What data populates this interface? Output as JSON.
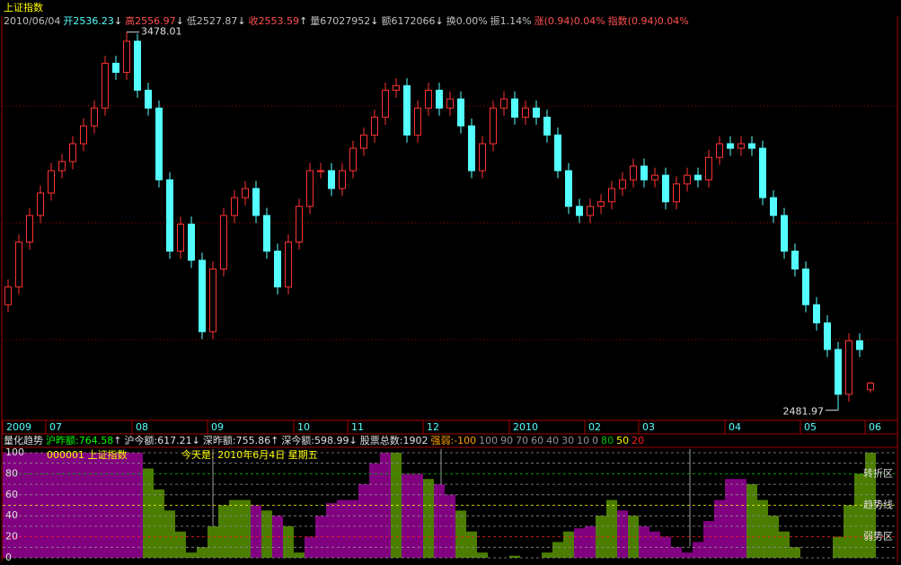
{
  "header": {
    "title": "上证指数",
    "date": "2010/06/04",
    "items": [
      {
        "label": "开",
        "arrow": "↓",
        "color": "#54ffff"
      },
      {
        "label": "高",
        "arrow": "↓",
        "color": "#ff5050"
      },
      {
        "label": "低",
        "arrow": "↓",
        "color": "#c0c0c0"
      },
      {
        "label": "收",
        "arrow": "↑",
        "color": "#ff5050"
      },
      {
        "label": "量",
        "value": "67027952",
        "arrow": "↓",
        "color": "#c0c0c0"
      },
      {
        "label": "额",
        "value": "6172066",
        "arrow": "↓",
        "color": "#c0c0c0"
      },
      {
        "label": "换",
        "value": "0.00%",
        "color": "#c0c0c0"
      },
      {
        "label": "振",
        "value": "1.14%",
        "color": "#c0c0c0"
      },
      {
        "label": "涨",
        "value": "(0.94)0.04%",
        "color": "#ff5050"
      },
      {
        "label": "指数",
        "value": "(0.94)0.04%",
        "color": "#ff5050"
      }
    ]
  },
  "chart_data": [
    {
      "type": "candlestick",
      "categories": [
        "2009",
        null,
        null,
        null,
        "07",
        null,
        null,
        null,
        null,
        null,
        null,
        null,
        "08",
        null,
        null,
        null,
        null,
        null,
        null,
        "09",
        null,
        null,
        null,
        null,
        null,
        null,
        null,
        "10",
        null,
        null,
        null,
        null,
        "11",
        null,
        null,
        null,
        null,
        null,
        null,
        "12",
        null,
        null,
        null,
        null,
        null,
        null,
        null,
        "2010",
        null,
        null,
        null,
        null,
        null,
        null,
        "02",
        null,
        null,
        null,
        null,
        "03",
        null,
        null,
        null,
        null,
        null,
        null,
        null,
        "04",
        null,
        null,
        null,
        null,
        null,
        null,
        "05",
        null,
        null,
        null,
        null,
        null,
        "06"
      ],
      "open": [
        2760,
        2807,
        2925,
        2995,
        3054,
        3113,
        3137,
        3184,
        3231,
        3278,
        3396,
        3372,
        3454,
        3325,
        3278,
        3089,
        2901,
        2972,
        2877,
        2689,
        2854,
        2995,
        3042,
        3066,
        2995,
        2901,
        2807,
        2925,
        3019,
        3113,
        3113,
        3066,
        3113,
        3172,
        3207,
        3254,
        3325,
        3337,
        3207,
        3278,
        3325,
        3278,
        3302,
        3231,
        3113,
        3184,
        3278,
        3302,
        3254,
        3278,
        3254,
        3207,
        3113,
        3019,
        2995,
        3019,
        3031,
        3066,
        3089,
        3125,
        3089,
        3101,
        3031,
        3078,
        3101,
        3089,
        3148,
        3184,
        3172,
        3184,
        3172,
        3042,
        2995,
        2901,
        2854,
        2760,
        2712,
        2642,
        2524,
        2665,
        2536.23
      ],
      "high": [
        2827,
        2945,
        3015,
        3074,
        3133,
        3157,
        3204,
        3251,
        3298,
        3416,
        3416,
        3478.01,
        3474,
        3345,
        3298,
        3109,
        2992,
        2992,
        2897,
        2874,
        3015,
        3062,
        3086,
        3086,
        3015,
        2921,
        2945,
        3039,
        3133,
        3133,
        3133,
        3133,
        3192,
        3227,
        3274,
        3345,
        3357,
        3357,
        3298,
        3345,
        3345,
        3322,
        3322,
        3251,
        3204,
        3298,
        3322,
        3322,
        3298,
        3298,
        3274,
        3227,
        3133,
        3039,
        3039,
        3051,
        3086,
        3109,
        3145,
        3145,
        3121,
        3121,
        3098,
        3121,
        3121,
        3168,
        3204,
        3204,
        3204,
        3204,
        3192,
        3062,
        3015,
        2921,
        2874,
        2780,
        2732,
        2662,
        2685,
        2685,
        2556.97
      ],
      "low": [
        2740,
        2787,
        2905,
        2975,
        3034,
        3093,
        3117,
        3164,
        3211,
        3258,
        3352,
        3352,
        3305,
        3258,
        3069,
        2881,
        2881,
        2857,
        2669,
        2669,
        2834,
        2975,
        3022,
        2975,
        2881,
        2787,
        2787,
        2905,
        2999,
        3093,
        3046,
        3046,
        3093,
        3152,
        3187,
        3234,
        3305,
        3187,
        3187,
        3258,
        3258,
        3258,
        3211,
        3093,
        3093,
        3164,
        3258,
        3234,
        3234,
        3234,
        3187,
        3093,
        2999,
        2975,
        2975,
        2999,
        3011,
        3046,
        3069,
        3069,
        3069,
        3011,
        3011,
        3058,
        3069,
        3069,
        3128,
        3152,
        3152,
        3152,
        3022,
        2975,
        2881,
        2834,
        2740,
        2692,
        2622,
        2481.97,
        2504,
        2622,
        2527.87
      ],
      "close": [
        2807,
        2925,
        2995,
        3054,
        3113,
        3137,
        3184,
        3231,
        3278,
        3396,
        3372,
        3454,
        3325,
        3278,
        3089,
        2901,
        2972,
        2877,
        2689,
        2854,
        2995,
        3042,
        3066,
        2995,
        2901,
        2807,
        2925,
        3019,
        3113,
        3113,
        3066,
        3113,
        3172,
        3207,
        3254,
        3325,
        3337,
        3207,
        3278,
        3325,
        3278,
        3302,
        3231,
        3113,
        3184,
        3278,
        3302,
        3254,
        3278,
        3254,
        3207,
        3113,
        3019,
        2995,
        3019,
        3031,
        3066,
        3089,
        3125,
        3089,
        3101,
        3031,
        3078,
        3101,
        3089,
        3148,
        3184,
        3172,
        3184,
        3172,
        3042,
        2995,
        2901,
        2854,
        2760,
        2712,
        2642,
        2524,
        2665,
        2642,
        2553.59
      ],
      "up_color": "#ff3232",
      "down_color": "#54ffff",
      "ylim": [
        2460,
        3520
      ]
    },
    {
      "type": "bar",
      "title": "量化趋势",
      "stats": [
        {
          "label": "沪昨额:",
          "value": "764.58",
          "arrow": "↑",
          "color": "#00ff00"
        },
        {
          "label": "沪今额:",
          "value": "617.21",
          "arrow": "↓",
          "color": "#e0e0e0"
        },
        {
          "label": "深昨额:",
          "value": "755.86",
          "arrow": "↑",
          "color": "#e0e0e0"
        },
        {
          "label": "深今额:",
          "value": "598.99",
          "arrow": "↓",
          "color": "#e0e0e0"
        },
        {
          "label": "股票总数:",
          "value": "1902",
          "color": "#e0e0e0"
        }
      ],
      "strength_label": "强弱:",
      "strength": -100,
      "levels": [
        {
          "value": 100,
          "color": "#909090"
        },
        {
          "value": 90,
          "color": "#909090"
        },
        {
          "value": 70,
          "color": "#909090"
        },
        {
          "value": 60,
          "color": "#909090"
        },
        {
          "value": 40,
          "color": "#909090"
        },
        {
          "value": 30,
          "color": "#909090"
        },
        {
          "value": 10,
          "color": "#909090"
        },
        {
          "value": 0,
          "color": "#909090"
        },
        {
          "value": 80,
          "color": "#00c000",
          "zone": "转折区"
        },
        {
          "value": 50,
          "color": "#ffff00",
          "zone": "趋势线"
        },
        {
          "value": 20,
          "color": "#ff2020",
          "zone": "弱势区"
        }
      ],
      "stock": "000001 上证指数",
      "today": "今天是: 2010年6月4日 星期五",
      "ylim": [
        0,
        100
      ],
      "yticks": [
        0,
        20,
        40,
        60,
        80,
        100
      ],
      "values": [
        100,
        100,
        100,
        100,
        100,
        100,
        100,
        100,
        100,
        100,
        100,
        100,
        100,
        85,
        65,
        45,
        25,
        5,
        10,
        30,
        50,
        55,
        55,
        50,
        45,
        40,
        30,
        5,
        20,
        40,
        52,
        55,
        55,
        70,
        90,
        100,
        100,
        80,
        80,
        75,
        70,
        60,
        45,
        25,
        5,
        0,
        0,
        2,
        0,
        0,
        5,
        15,
        25,
        28,
        30,
        40,
        55,
        45,
        40,
        30,
        25,
        20,
        10,
        5,
        15,
        35,
        55,
        75,
        75,
        70,
        55,
        40,
        25,
        10,
        0,
        0,
        0,
        20,
        50,
        80,
        100
      ],
      "colors": [
        "#800080",
        "#800080",
        "#800080",
        "#800080",
        "#800080",
        "#800080",
        "#800080",
        "#800080",
        "#800080",
        "#800080",
        "#800080",
        "#800080",
        "#800080",
        "#4b7d00",
        "#4b7d00",
        "#4b7d00",
        "#4b7d00",
        "#4b7d00",
        "#4b7d00",
        "#4b7d00",
        "#4b7d00",
        "#4b7d00",
        "#4b7d00",
        "#800080",
        "#4b7d00",
        "#800080",
        "#4b7d00",
        "#4b7d00",
        "#800080",
        "#800080",
        "#800080",
        "#800080",
        "#800080",
        "#800080",
        "#800080",
        "#800080",
        "#4b7d00",
        "#800080",
        "#800080",
        "#4b7d00",
        "#800080",
        "#800080",
        "#4b7d00",
        "#4b7d00",
        "#4b7d00",
        "#4b7d00",
        "#4b7d00",
        "#4b7d00",
        "#4b7d00",
        "#4b7d00",
        "#4b7d00",
        "#4b7d00",
        "#4b7d00",
        "#800080",
        "#800080",
        "#4b7d00",
        "#4b7d00",
        "#800080",
        "#4b7d00",
        "#800080",
        "#800080",
        "#800080",
        "#800080",
        "#800080",
        "#800080",
        "#800080",
        "#800080",
        "#800080",
        "#800080",
        "#4b7d00",
        "#4b7d00",
        "#4b7d00",
        "#4b7d00",
        "#4b7d00",
        "#4b7d00",
        "#4b7d00",
        "#4b7d00",
        "#4b7d00",
        "#4b7d00",
        "#4b7d00",
        "#4b7d00"
      ]
    }
  ]
}
